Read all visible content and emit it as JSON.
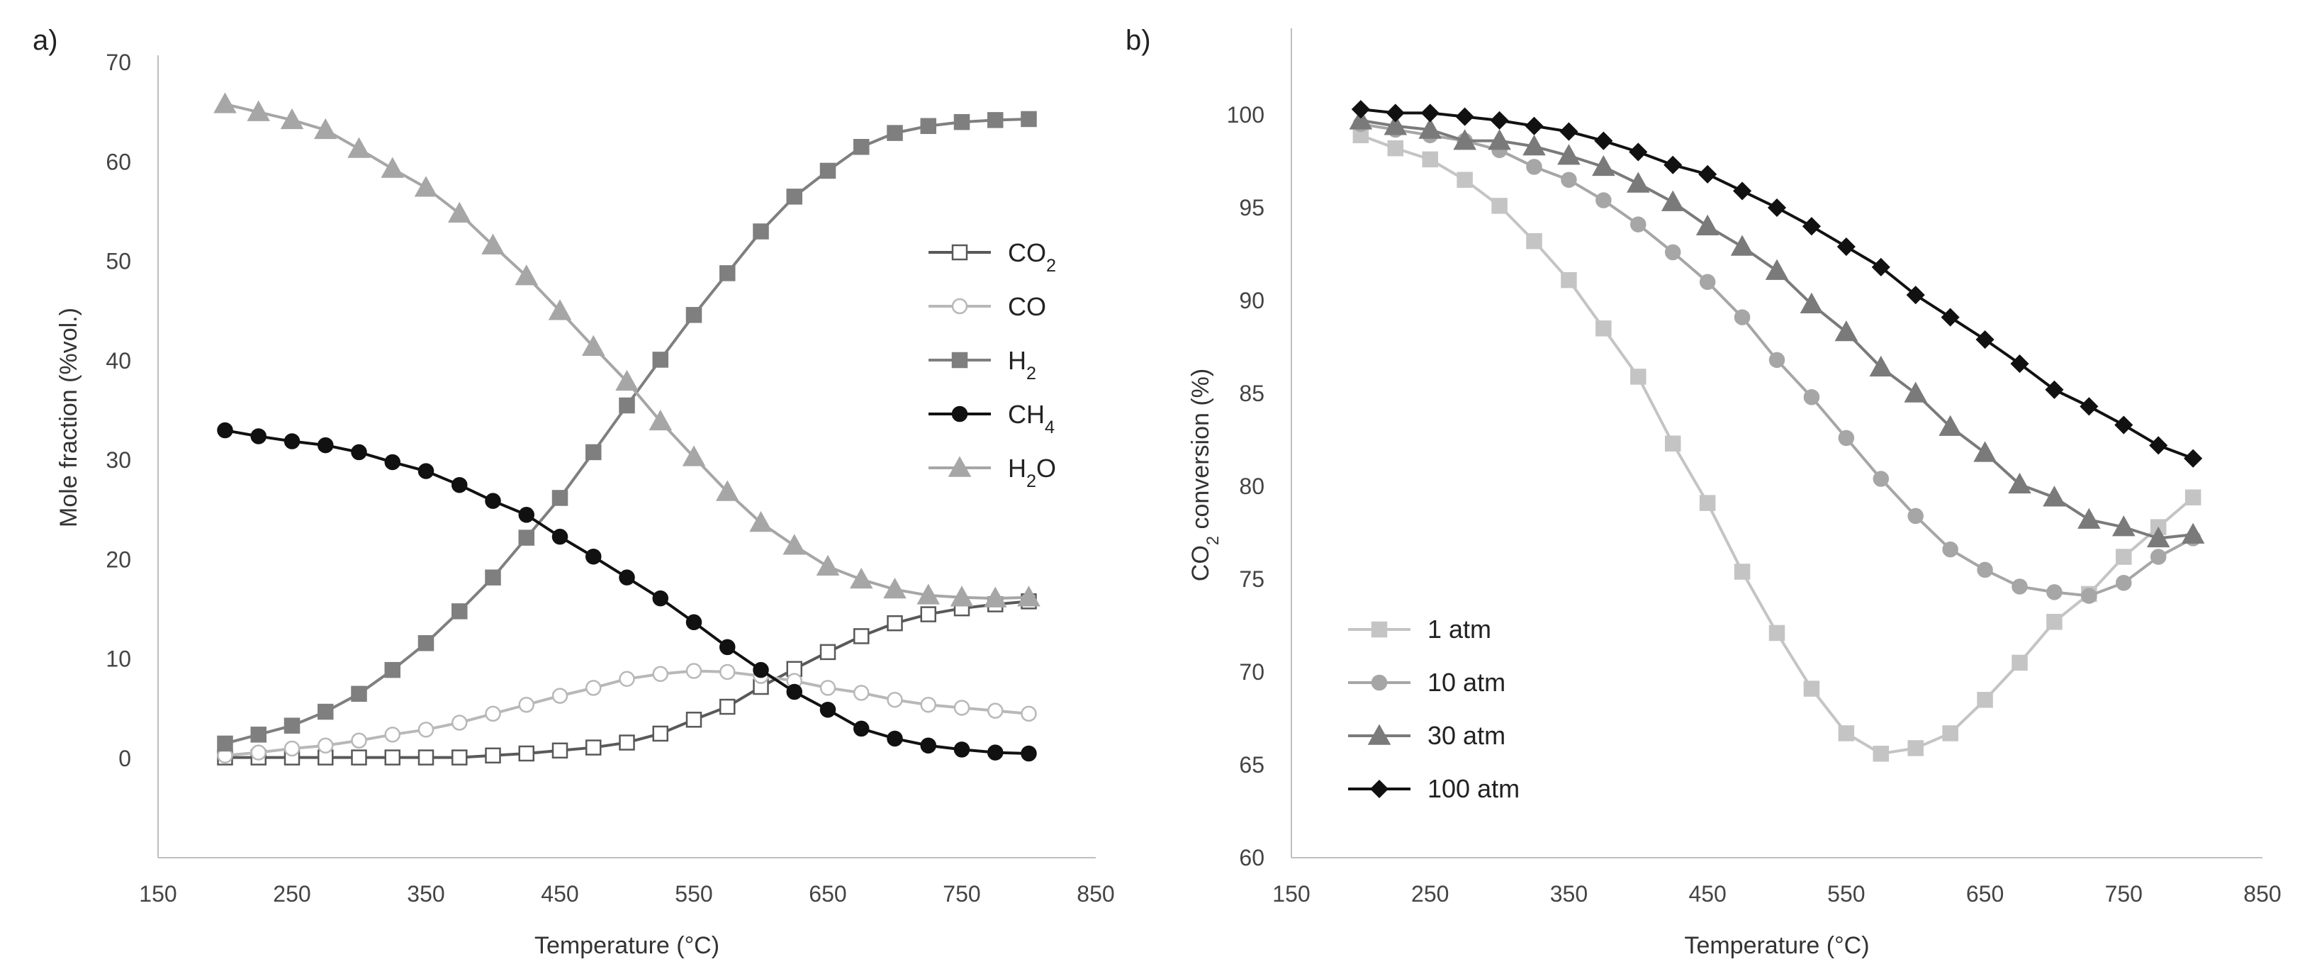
{
  "chart_data": [
    {
      "type": "line",
      "panel_label": "a)",
      "xlabel": "Temperature (°C)",
      "ylabel": "Mole fraction (%vol.)",
      "xlim": [
        150,
        850
      ],
      "ylim": [
        0,
        70
      ],
      "x_ticks": [
        "150",
        "250",
        "350",
        "450",
        "550",
        "650",
        "750",
        "850"
      ],
      "y_ticks": [
        "0",
        "10",
        "20",
        "30",
        "40",
        "50",
        "60",
        "70"
      ],
      "grid": false,
      "legend_position": "right",
      "x": [
        200,
        225,
        250,
        275,
        300,
        325,
        350,
        375,
        400,
        425,
        450,
        475,
        500,
        525,
        550,
        575,
        600,
        625,
        650,
        675,
        700,
        725,
        750,
        775,
        800
      ],
      "series": [
        {
          "name": "CO2",
          "label_main": "CO",
          "label_sub": "2",
          "marker": "square-open",
          "color": "#595959",
          "values": [
            0.1,
            0.1,
            0.1,
            0.1,
            0.1,
            0.1,
            0.1,
            0.1,
            0.3,
            0.5,
            0.8,
            1.1,
            1.6,
            2.5,
            3.9,
            5.2,
            7.2,
            9.0,
            10.7,
            12.3,
            13.6,
            14.5,
            15.1,
            15.5,
            15.8
          ]
        },
        {
          "name": "CO",
          "label_main": "CO",
          "label_sub": "",
          "marker": "circle-open",
          "color": "#b8b8b8",
          "values": [
            0.3,
            0.6,
            1.0,
            1.3,
            1.8,
            2.4,
            2.9,
            3.6,
            4.5,
            5.4,
            6.3,
            7.1,
            8.0,
            8.5,
            8.8,
            8.7,
            8.3,
            7.8,
            7.1,
            6.6,
            5.9,
            5.4,
            5.1,
            4.8,
            4.5
          ]
        },
        {
          "name": "H2",
          "label_main": "H",
          "label_sub": "2",
          "marker": "square",
          "color": "#7f7f7f",
          "values": [
            1.5,
            2.4,
            3.3,
            4.7,
            6.5,
            8.9,
            11.6,
            14.8,
            18.2,
            22.2,
            26.2,
            30.8,
            35.5,
            40.1,
            44.6,
            48.8,
            53.0,
            56.5,
            59.1,
            61.5,
            62.9,
            63.6,
            64.0,
            64.2,
            64.3
          ]
        },
        {
          "name": "CH4",
          "label_main": "CH",
          "label_sub": "4",
          "marker": "circle",
          "color": "#111111",
          "values": [
            33.0,
            32.4,
            31.9,
            31.5,
            30.8,
            29.8,
            28.9,
            27.5,
            25.9,
            24.5,
            22.3,
            20.3,
            18.2,
            16.1,
            13.7,
            11.2,
            8.9,
            6.7,
            4.9,
            3.0,
            2.0,
            1.3,
            0.9,
            0.6,
            0.5
          ]
        },
        {
          "name": "H2O",
          "label_main": "H",
          "label_sub": "2",
          "label_tail": "O",
          "marker": "triangle",
          "color": "#a6a6a6",
          "values": [
            65.8,
            65.0,
            64.2,
            63.2,
            61.3,
            59.3,
            57.4,
            54.8,
            51.6,
            48.5,
            45.0,
            41.4,
            37.9,
            33.9,
            30.3,
            26.8,
            23.7,
            21.4,
            19.3,
            18.0,
            17.0,
            16.4,
            16.2,
            16.1,
            16.2
          ]
        }
      ]
    },
    {
      "type": "line",
      "panel_label": "b)",
      "xlabel": "Temperature (°C)",
      "ylabel_main": "CO",
      "ylabel_sub": "2",
      "ylabel_tail": " conversion (%)",
      "xlim": [
        150,
        850
      ],
      "ylim": [
        60,
        105
      ],
      "x_ticks": [
        "150",
        "250",
        "350",
        "450",
        "550",
        "650",
        "750",
        "850"
      ],
      "y_ticks": [
        "60",
        "65",
        "70",
        "75",
        "80",
        "85",
        "90",
        "95",
        "100"
      ],
      "grid": false,
      "legend_position": "bottom-left",
      "x": [
        200,
        225,
        250,
        275,
        300,
        325,
        350,
        375,
        400,
        425,
        450,
        475,
        500,
        525,
        550,
        575,
        600,
        625,
        650,
        675,
        700,
        725,
        750,
        775,
        800
      ],
      "series": [
        {
          "name": "1 atm",
          "marker": "square",
          "color": "#c4c4c4",
          "values": [
            98.9,
            98.2,
            97.6,
            96.5,
            95.1,
            93.2,
            91.1,
            88.5,
            85.9,
            82.3,
            79.1,
            75.4,
            72.1,
            69.1,
            66.7,
            65.6,
            65.9,
            66.7,
            68.5,
            70.5,
            72.7,
            74.2,
            76.2,
            77.8,
            79.4
          ]
        },
        {
          "name": "10 atm",
          "marker": "circle",
          "color": "#a6a6a6",
          "values": [
            99.5,
            99.2,
            98.9,
            98.6,
            98.1,
            97.2,
            96.5,
            95.4,
            94.1,
            92.6,
            91.0,
            89.1,
            86.8,
            84.8,
            82.6,
            80.4,
            78.4,
            76.6,
            75.5,
            74.6,
            74.3,
            74.1,
            74.8,
            76.2,
            77.2
          ]
        },
        {
          "name": "30 atm",
          "marker": "triangle",
          "color": "#7a7a7a",
          "values": [
            99.7,
            99.4,
            99.2,
            98.6,
            98.6,
            98.3,
            97.8,
            97.2,
            96.3,
            95.3,
            94.0,
            92.9,
            91.6,
            89.8,
            88.3,
            86.4,
            85.0,
            83.2,
            81.8,
            80.1,
            79.4,
            78.2,
            77.8,
            77.2,
            77.4
          ]
        },
        {
          "name": "100 atm",
          "marker": "diamond",
          "color": "#111111",
          "values": [
            100.3,
            100.1,
            100.1,
            99.9,
            99.7,
            99.4,
            99.1,
            98.6,
            98.0,
            97.3,
            96.8,
            95.9,
            95.0,
            94.0,
            92.9,
            91.8,
            90.3,
            89.1,
            87.9,
            86.6,
            85.2,
            84.3,
            83.3,
            82.2,
            81.5
          ]
        }
      ]
    }
  ]
}
